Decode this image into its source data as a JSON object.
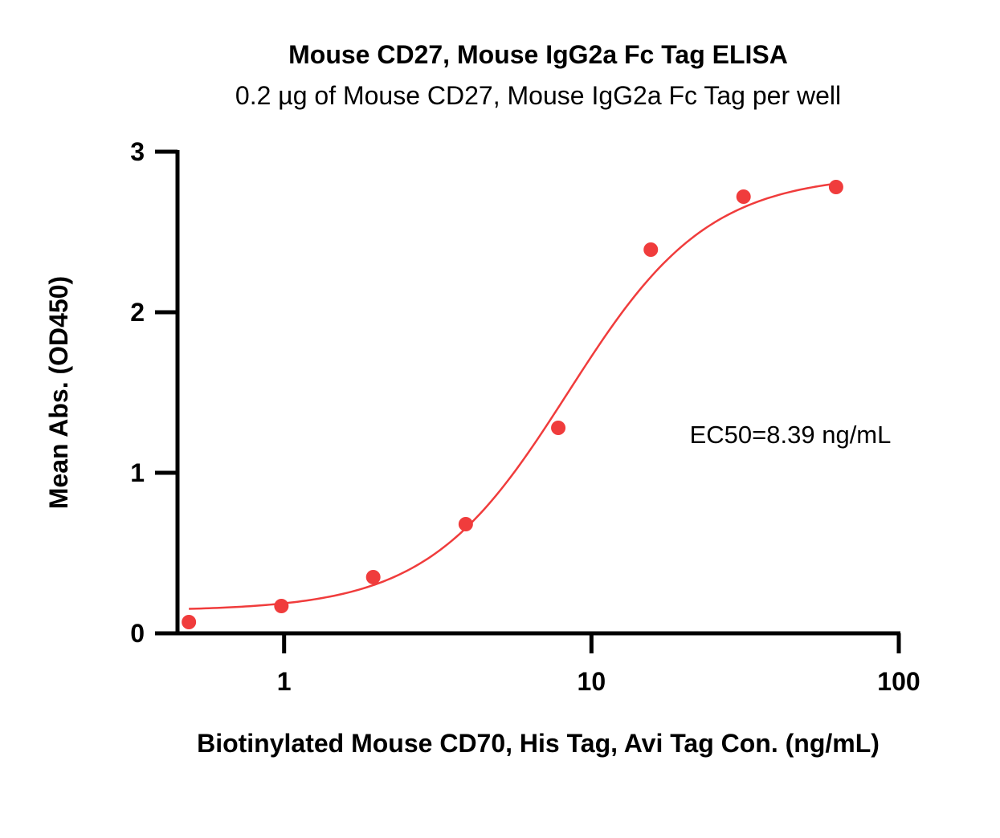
{
  "chart_data": {
    "type": "scatter",
    "title": "Mouse CD27, Mouse IgG2a Fc Tag ELISA",
    "subtitle": "0.2 µg of Mouse CD27, Mouse IgG2a Fc Tag per well",
    "xlabel": "Biotinylated Mouse CD70, His Tag, Avi Tag Con. (ng/mL)",
    "ylabel": "Mean Abs. (OD450)",
    "x_scale": "log",
    "xlim": [
      0.45,
      100
    ],
    "ylim": [
      0,
      3
    ],
    "x_ticks": [
      1,
      10,
      100
    ],
    "x_tick_labels": [
      "1",
      "10",
      "100"
    ],
    "y_ticks": [
      0,
      1,
      2,
      3
    ],
    "y_tick_labels": [
      "0",
      "1",
      "2",
      "3"
    ],
    "grid": false,
    "color": "#f03c3c",
    "x": [
      0.49,
      0.98,
      1.95,
      3.9,
      7.8,
      15.6,
      31.25,
      62.5
    ],
    "y": [
      0.07,
      0.17,
      0.35,
      0.68,
      1.28,
      2.39,
      2.72,
      2.78
    ],
    "fit": {
      "bottom": 0.14,
      "top": 2.86,
      "ec50": 8.39,
      "hill": 1.9
    },
    "annotation": "EC50=8.39 ng/mL"
  }
}
